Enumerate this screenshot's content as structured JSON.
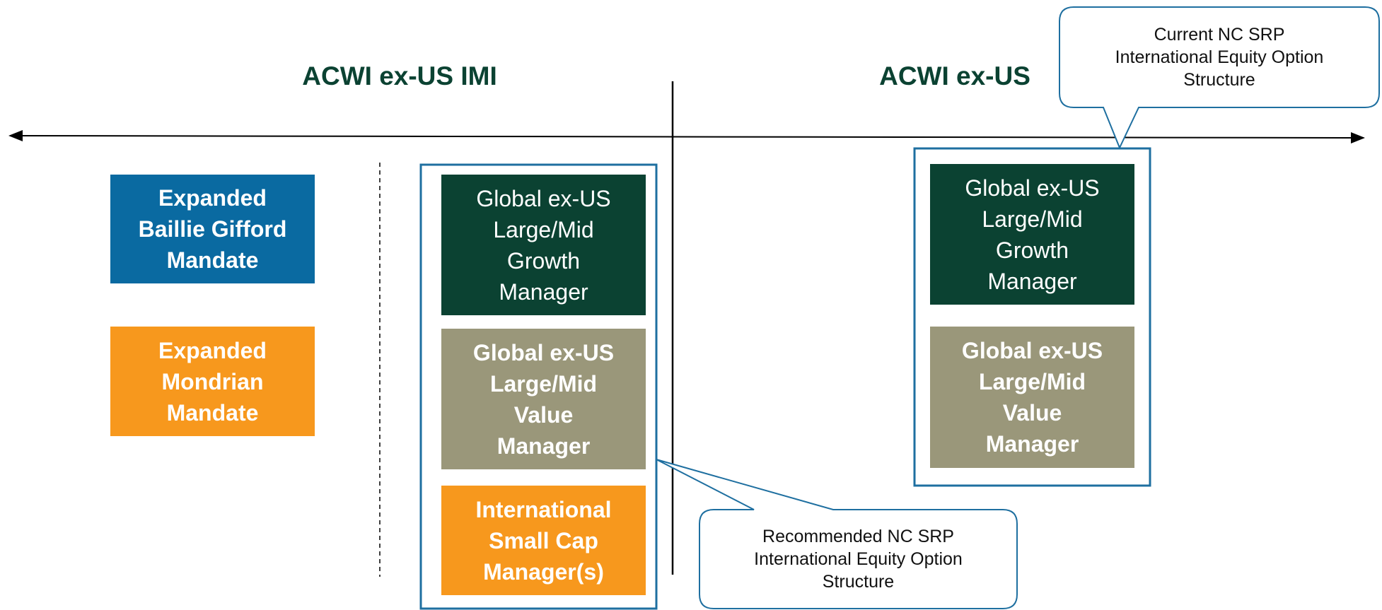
{
  "headings": {
    "imi": "ACWI ex-US IMI",
    "ex_us": "ACWI ex-US"
  },
  "left_boxes": [
    {
      "lines": [
        "Expanded",
        "Baillie Gifford",
        "Mandate"
      ]
    },
    {
      "lines": [
        "Expanded",
        "Mondrian",
        "Mandate"
      ]
    }
  ],
  "recommended_boxes": [
    {
      "lines": [
        "Global ex-US",
        "Large/Mid",
        "Growth",
        "Manager"
      ]
    },
    {
      "lines": [
        "Global ex-US",
        "Large/Mid",
        "Value",
        "Manager"
      ]
    },
    {
      "lines": [
        "International",
        "Small Cap",
        "Manager(s)"
      ]
    }
  ],
  "current_boxes": [
    {
      "lines": [
        "Global ex-US",
        "Large/Mid",
        "Growth",
        "Manager"
      ]
    },
    {
      "lines": [
        "Global ex-US",
        "Large/Mid",
        "Value",
        "Manager"
      ]
    }
  ],
  "callouts": {
    "current": {
      "lines": [
        "Current NC SRP",
        "International Equity Option",
        "Structure"
      ]
    },
    "recommended": {
      "lines": [
        "Recommended NC SRP",
        "International Equity Option",
        "Structure"
      ]
    }
  }
}
